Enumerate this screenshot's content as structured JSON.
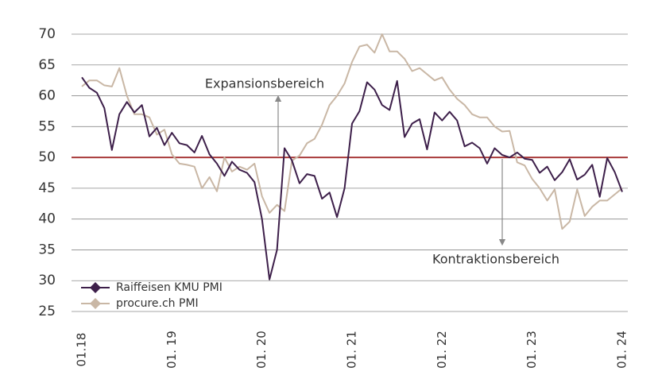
{
  "chart_data": {
    "type": "line",
    "categories": [
      "01.18",
      null,
      null,
      null,
      null,
      null,
      null,
      null,
      null,
      null,
      null,
      null,
      "01. 19",
      null,
      null,
      null,
      null,
      null,
      null,
      null,
      null,
      null,
      null,
      null,
      "01. 20",
      null,
      null,
      null,
      null,
      null,
      null,
      null,
      null,
      null,
      null,
      null,
      "01. 21",
      null,
      null,
      null,
      null,
      null,
      null,
      null,
      null,
      null,
      null,
      null,
      "01. 22",
      null,
      null,
      null,
      null,
      null,
      null,
      null,
      null,
      null,
      null,
      null,
      "01. 23",
      null,
      null,
      null,
      null,
      null,
      null,
      null,
      null,
      null,
      null,
      null,
      "01. 24"
    ],
    "series": [
      {
        "name": "Raiffeisen KMU PMI",
        "color": "#3d1f4a",
        "marker": "diamond",
        "values": [
          63,
          61.3,
          60.5,
          58,
          51.2,
          57,
          59,
          57.3,
          58.5,
          53.4,
          54.8,
          52,
          54,
          52.3,
          52,
          50.8,
          53.5,
          50.5,
          49,
          47,
          49.3,
          48,
          47.5,
          46,
          40,
          30.2,
          35,
          51.5,
          49.5,
          45.8,
          47.3,
          47,
          43.3,
          44.3,
          40.3,
          45,
          55.5,
          57.5,
          62.2,
          61,
          58.5,
          57.7,
          62.4,
          53.3,
          55.5,
          56.2,
          51.3,
          57.3,
          56,
          57.4,
          56,
          51.8,
          52.4,
          51.5,
          49,
          51.5,
          50.4,
          50,
          50.8,
          49.8,
          49.6,
          47.5,
          48.5,
          46.3,
          47.6,
          49.7,
          46.4,
          47.2,
          48.8,
          43.6,
          49.9,
          47.6,
          44.4
        ]
      },
      {
        "name": "procure.ch PMI",
        "color": "#c9b7a5",
        "marker": "diamond",
        "values": [
          61.5,
          62.5,
          62.5,
          61.7,
          61.5,
          64.5,
          60,
          57,
          57,
          56.5,
          53.7,
          54.5,
          50.5,
          49,
          48.8,
          48.5,
          45,
          46.8,
          44.5,
          50,
          47.7,
          48.5,
          48,
          49,
          43.7,
          41,
          42.3,
          41.3,
          49.5,
          50.3,
          52.3,
          53,
          55.3,
          58.5,
          60,
          62,
          65.5,
          68,
          68.3,
          67,
          70,
          67.2,
          67.2,
          66,
          64,
          64.5,
          63.5,
          62.5,
          63,
          61,
          59.5,
          58.5,
          57,
          56.5,
          56.5,
          55,
          54.2,
          54.3,
          49.2,
          48.7,
          46.5,
          45,
          43,
          44.8,
          38.4,
          39.6,
          44.8,
          40.5,
          42,
          43,
          43,
          44,
          45
        ]
      }
    ],
    "ylim": [
      25,
      70
    ],
    "yticks": [
      25,
      30,
      35,
      40,
      45,
      50,
      55,
      60,
      65,
      70
    ],
    "grid": true,
    "reference_line": {
      "value": 50,
      "color": "#a83a3a"
    },
    "annotations": [
      {
        "text": "Expansionsbereich",
        "direction": "up"
      },
      {
        "text": "Kontraktionsbereich",
        "direction": "down"
      }
    ],
    "legend": "lower left"
  }
}
